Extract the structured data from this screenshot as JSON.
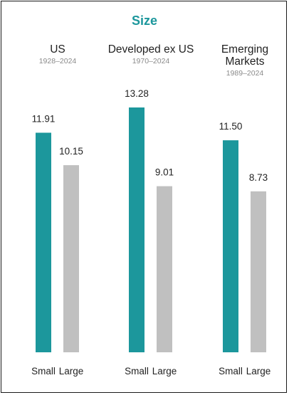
{
  "chart_data": {
    "type": "bar",
    "title": "Size",
    "categories": [
      "Small",
      "Large"
    ],
    "groups": [
      {
        "name": [
          "US"
        ],
        "period": "1928–2024",
        "values": [
          11.91,
          10.15
        ],
        "labels": [
          "11.91",
          "10.15"
        ]
      },
      {
        "name": [
          "Developed ex US"
        ],
        "period": "1970–2024",
        "values": [
          13.28,
          9.01
        ],
        "labels": [
          "13.28",
          "9.01"
        ]
      },
      {
        "name": [
          "Emerging",
          "Markets"
        ],
        "period": "1989–2024",
        "values": [
          11.5,
          8.73
        ],
        "labels": [
          "11.50",
          "8.73"
        ]
      }
    ],
    "ylim": [
      0,
      13.28
    ],
    "grid": false,
    "legend": "none",
    "colors": {
      "small": "#1c979c",
      "large": "#c0c0c0",
      "title": "#1c979c"
    }
  }
}
